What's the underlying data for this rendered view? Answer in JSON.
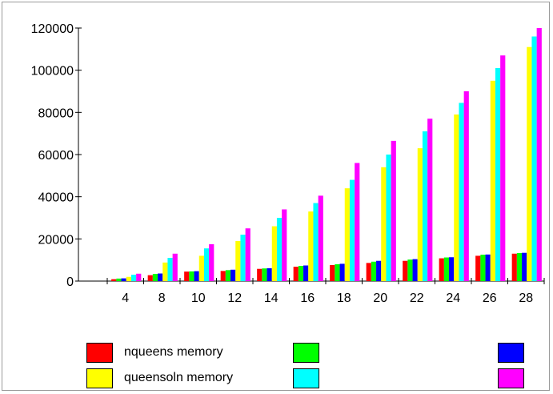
{
  "chart_data": {
    "type": "bar",
    "title": "",
    "xlabel": "",
    "ylabel": "",
    "ylim": [
      0,
      120000
    ],
    "yticks": [
      0,
      20000,
      40000,
      60000,
      80000,
      100000,
      120000
    ],
    "categories": [
      "4",
      "8",
      "10",
      "12",
      "14",
      "16",
      "18",
      "20",
      "22",
      "24",
      "26",
      "28"
    ],
    "grid": false,
    "legend_position": "bottom",
    "series": [
      {
        "name": "nqueens memory",
        "color": "#ff0000",
        "values": [
          900,
          2800,
          4500,
          4800,
          5800,
          6800,
          7600,
          8600,
          9600,
          10800,
          12000,
          13000
        ]
      },
      {
        "color": "#00ff00",
        "values": [
          1200,
          3400,
          4600,
          5200,
          6000,
          7200,
          8000,
          9200,
          10200,
          11200,
          12500,
          13300
        ]
      },
      {
        "color": "#0000ff",
        "values": [
          1300,
          3600,
          4700,
          5400,
          6100,
          7400,
          8200,
          9600,
          10400,
          11300,
          12600,
          13400
        ]
      },
      {
        "name": "queensoln memory",
        "color": "#ffff00",
        "values": [
          2000,
          8800,
          12000,
          19000,
          26000,
          33000,
          44000,
          54000,
          63000,
          79000,
          95000,
          111000
        ]
      },
      {
        "color": "#00ffff",
        "values": [
          3000,
          11000,
          15500,
          22000,
          30000,
          37000,
          48000,
          60000,
          71000,
          84500,
          101000,
          116000
        ]
      },
      {
        "color": "#ff00ff",
        "values": [
          3500,
          13000,
          17500,
          25000,
          34000,
          40500,
          56000,
          66500,
          77000,
          90000,
          107000,
          120000
        ]
      }
    ]
  },
  "legend": {
    "items": [
      {
        "label": "nqueens memory",
        "color": "#ff0000"
      },
      {
        "label": "",
        "color": "#00ff00"
      },
      {
        "label": "",
        "color": "#0000ff"
      },
      {
        "label": "queensoln memory",
        "color": "#ffff00"
      },
      {
        "label": "",
        "color": "#00ffff"
      },
      {
        "label": "",
        "color": "#ff00ff"
      }
    ]
  }
}
